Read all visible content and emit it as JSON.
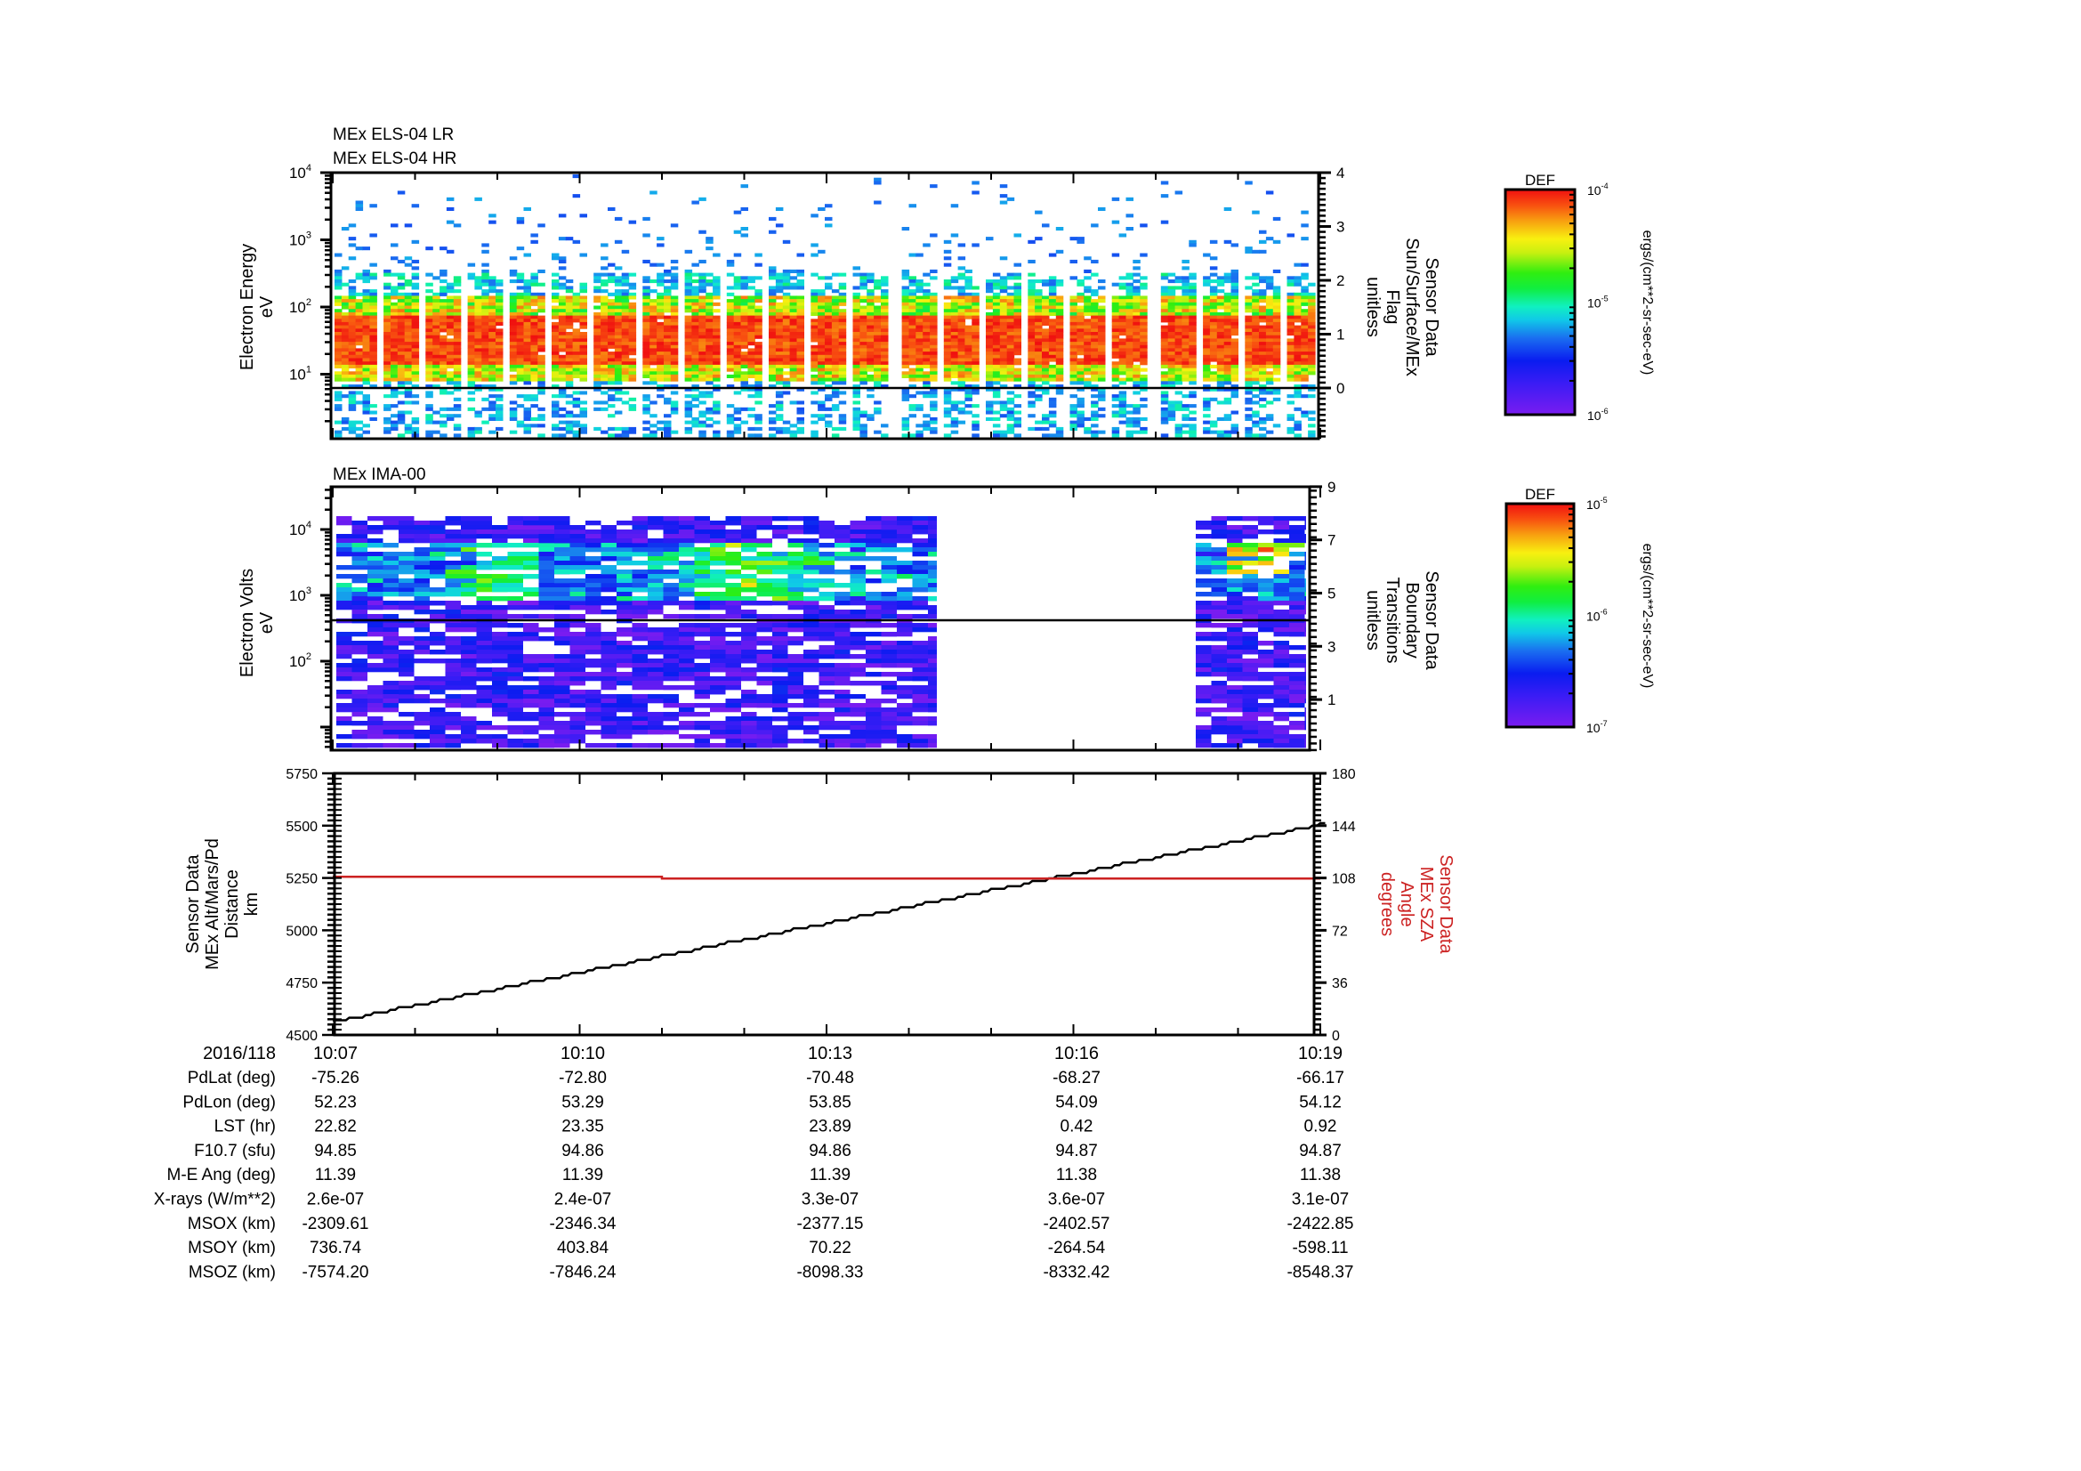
{
  "chart_data": [
    {
      "type": "heatmap",
      "panel": "top",
      "titles": [
        "MEx ELS-04 LR",
        "MEx ELS-04 HR"
      ],
      "ylabel": [
        "Electron Energy",
        "eV"
      ],
      "yscale": "log",
      "ylim": [
        1,
        10000
      ],
      "yticks": [
        {
          "base": "10",
          "exp": "1",
          "value": 10
        },
        {
          "base": "10",
          "exp": "2",
          "value": 100
        },
        {
          "base": "10",
          "exp": "3",
          "value": 1000
        },
        {
          "base": "10",
          "exp": "4",
          "value": 10000
        }
      ],
      "y2label": [
        "Sensor Data",
        "Sun/Surface/MEx",
        "Flag",
        "unitless"
      ],
      "y2lim": [
        -0.5,
        4
      ],
      "y2ticks": [
        "0",
        "1",
        "2",
        "3",
        "4"
      ],
      "flag_line_value": 0,
      "colorbar": {
        "title": "DEF",
        "units": "ergs/(cm**2-sr-sec-eV)",
        "ticks": [
          {
            "base": "10",
            "exp": "-4"
          },
          {
            "base": "10",
            "exp": "-5"
          },
          {
            "base": "10",
            "exp": "-6"
          }
        ],
        "range": [
          1e-06,
          0.0001
        ]
      },
      "description": "Electron spectrogram; intense red band ~15-60 eV, green/yellow 8-150 eV, sparse blue above 200 eV and below 8 eV; periodic vertical white gaps"
    },
    {
      "type": "heatmap",
      "panel": "middle",
      "titles": [
        "MEx IMA-00"
      ],
      "ylabel": [
        "Electron Volts",
        "eV"
      ],
      "yscale": "log",
      "yticks": [
        {
          "base": "10",
          "exp": "2",
          "value": 100
        },
        {
          "base": "10",
          "exp": "3",
          "value": 1000
        },
        {
          "base": "10",
          "exp": "4",
          "value": 10000
        }
      ],
      "y2label": [
        "Sensor Data",
        "Boundary",
        "Transitions",
        "unitless"
      ],
      "y2lim": [
        -0.9,
        9
      ],
      "y2ticks": [
        "1",
        "3",
        "5",
        "7",
        "9"
      ],
      "boundary_line_value": 4,
      "data_gaps": [
        [
          "10:14:40",
          "10:17:50"
        ]
      ],
      "colorbar": {
        "title": "DEF",
        "units": "ergs/(cm**2-sr-sec-eV)",
        "ticks": [
          {
            "base": "10",
            "exp": "-5"
          },
          {
            "base": "10",
            "exp": "-6"
          },
          {
            "base": "10",
            "exp": "-7"
          }
        ],
        "range": [
          1e-07,
          1e-05
        ]
      },
      "description": "Ion spectrogram; mostly purple/blue sparse pixels, green-yellow enhancement around 1-3 keV near 10:10-10:13; gap in data ~10:14:40-10:17:50"
    },
    {
      "type": "line",
      "panel": "bottom",
      "ylabel": [
        "Sensor Data",
        "MEx Alt/Mars/Pd",
        "Distance",
        "km"
      ],
      "ylim": [
        4500,
        5750
      ],
      "yticks": [
        "4500",
        "4750",
        "5000",
        "5250",
        "5500",
        "5750"
      ],
      "y2label": [
        "Sensor Data",
        "MEx SZA",
        "Angle",
        "degrees"
      ],
      "y2lim": [
        0,
        180
      ],
      "y2ticks": [
        "0",
        "36",
        "72",
        "108",
        "144",
        "180"
      ],
      "series": [
        {
          "name": "MEx Alt/Mars/Pd Distance (km)",
          "color": "#000000",
          "axis": "left",
          "x": [
            "10:07",
            "10:10",
            "10:13",
            "10:16",
            "10:19"
          ],
          "values": [
            4570,
            4805,
            5040,
            5275,
            5512
          ]
        },
        {
          "name": "MEx SZA Angle (degrees)",
          "color": "#cc2222",
          "axis": "right",
          "x": [
            "10:07",
            "10:11",
            "10:11",
            "10:19"
          ],
          "values": [
            108.8,
            108.8,
            107.6,
            107.6
          ]
        }
      ]
    }
  ],
  "time_axis": {
    "date": "2016/118",
    "start": "10:07",
    "end": "10:19",
    "major_ticks": [
      "10:07",
      "10:10",
      "10:13",
      "10:16",
      "10:19"
    ]
  },
  "annotation_rows": [
    {
      "label": "PdLat (deg)",
      "values": [
        "-75.26",
        "-72.80",
        "-70.48",
        "-68.27",
        "-66.17"
      ]
    },
    {
      "label": "PdLon (deg)",
      "values": [
        "52.23",
        "53.29",
        "53.85",
        "54.09",
        "54.12"
      ]
    },
    {
      "label": "LST (hr)",
      "values": [
        "22.82",
        "23.35",
        "23.89",
        "0.42",
        "0.92"
      ]
    },
    {
      "label": "F10.7 (sfu)",
      "values": [
        "94.85",
        "94.86",
        "94.86",
        "94.87",
        "94.87"
      ]
    },
    {
      "label": "M-E Ang (deg)",
      "values": [
        "11.39",
        "11.39",
        "11.39",
        "11.38",
        "11.38"
      ]
    },
    {
      "label": "X-rays (W/m**2)",
      "values": [
        "2.6e-07",
        "2.4e-07",
        "3.3e-07",
        "3.6e-07",
        "3.1e-07"
      ]
    },
    {
      "label": "MSOX (km)",
      "values": [
        "-2309.61",
        "-2346.34",
        "-2377.15",
        "-2402.57",
        "-2422.85"
      ]
    },
    {
      "label": "MSOY (km)",
      "values": [
        "736.74",
        "403.84",
        "70.22",
        "-264.54",
        "-598.11"
      ]
    },
    {
      "label": "MSOZ (km)",
      "values": [
        "-7574.20",
        "-7846.24",
        "-8098.33",
        "-8332.42",
        "-8548.37"
      ]
    }
  ],
  "colors": {
    "axis": "#000000",
    "sza_line": "#cc2222",
    "background": "#ffffff"
  }
}
